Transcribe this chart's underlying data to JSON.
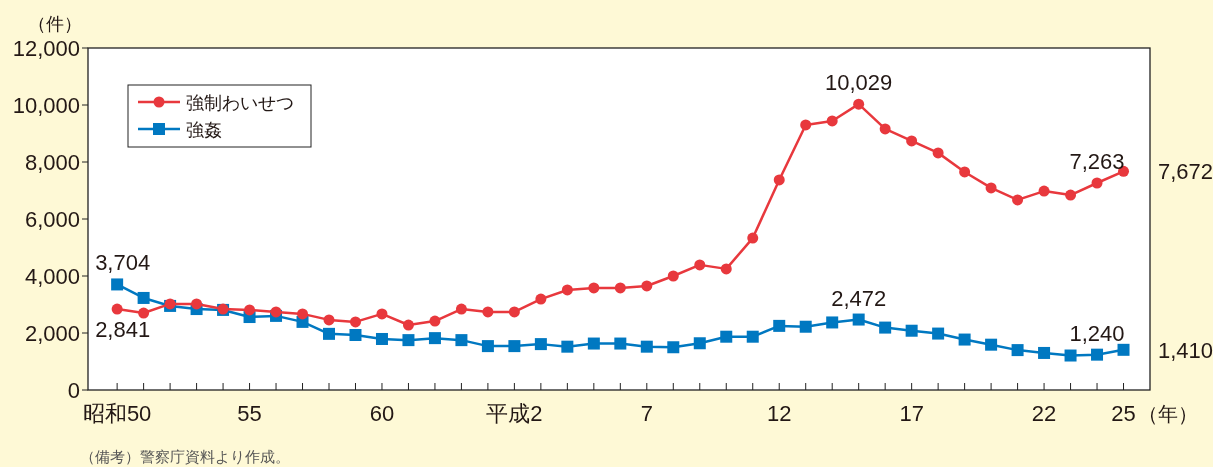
{
  "chart_data": {
    "type": "line",
    "categories": [
      "昭和50",
      null,
      null,
      null,
      null,
      "55",
      null,
      null,
      null,
      null,
      "60",
      null,
      null,
      null,
      null,
      "平成2",
      null,
      null,
      null,
      null,
      "7",
      null,
      null,
      null,
      null,
      "12",
      null,
      null,
      null,
      null,
      "17",
      null,
      null,
      null,
      null,
      "22",
      null,
      null,
      "25"
    ],
    "series": [
      {
        "name": "強制わいせつ",
        "color": "#e8383d",
        "marker": "circle",
        "values": [
          2841,
          2700,
          3020,
          3020,
          2840,
          2810,
          2740,
          2670,
          2460,
          2390,
          2670,
          2280,
          2420,
          2840,
          2740,
          2740,
          3190,
          3510,
          3580,
          3580,
          3650,
          4000,
          4390,
          4250,
          5330,
          7370,
          9300,
          9440,
          10029,
          9160,
          8740,
          8320,
          7650,
          7090,
          6670,
          6980,
          6840,
          7263,
          7672
        ],
        "value_labels": [
          "2,841",
          null,
          null,
          null,
          null,
          null,
          null,
          null,
          null,
          null,
          null,
          null,
          null,
          null,
          null,
          null,
          null,
          null,
          null,
          null,
          null,
          null,
          null,
          null,
          null,
          null,
          null,
          null,
          "10,029",
          null,
          null,
          null,
          null,
          null,
          null,
          null,
          null,
          "7,263",
          "7,672"
        ]
      },
      {
        "name": "強姦",
        "color": "#0078c1",
        "marker": "square",
        "values": [
          3704,
          3230,
          2950,
          2840,
          2810,
          2560,
          2600,
          2390,
          1970,
          1930,
          1790,
          1750,
          1820,
          1750,
          1540,
          1540,
          1610,
          1520,
          1630,
          1630,
          1520,
          1500,
          1640,
          1870,
          1870,
          2250,
          2220,
          2370,
          2472,
          2190,
          2080,
          1980,
          1770,
          1590,
          1400,
          1300,
          1210,
          1240,
          1410
        ],
        "value_labels": [
          "3,704",
          null,
          null,
          null,
          null,
          null,
          null,
          null,
          null,
          null,
          null,
          null,
          null,
          null,
          null,
          null,
          null,
          null,
          null,
          null,
          null,
          null,
          null,
          null,
          null,
          null,
          null,
          null,
          "2,472",
          null,
          null,
          null,
          null,
          null,
          null,
          null,
          null,
          "1,240",
          "1,410"
        ]
      }
    ],
    "ylim": [
      0,
      12000
    ],
    "yticks": [
      {
        "value": 0,
        "label": "0"
      },
      {
        "value": 2000,
        "label": "2,000"
      },
      {
        "value": 4000,
        "label": "4,000"
      },
      {
        "value": 6000,
        "label": "6,000"
      },
      {
        "value": 8000,
        "label": "8,000"
      },
      {
        "value": 10000,
        "label": "10,000"
      },
      {
        "value": 12000,
        "label": "12,000"
      }
    ],
    "ylabel": "（件）",
    "xlabel": "（年）",
    "legend": "top left",
    "grid": false,
    "annotations": [
      "（備考）警察庁資料より作成。"
    ]
  }
}
